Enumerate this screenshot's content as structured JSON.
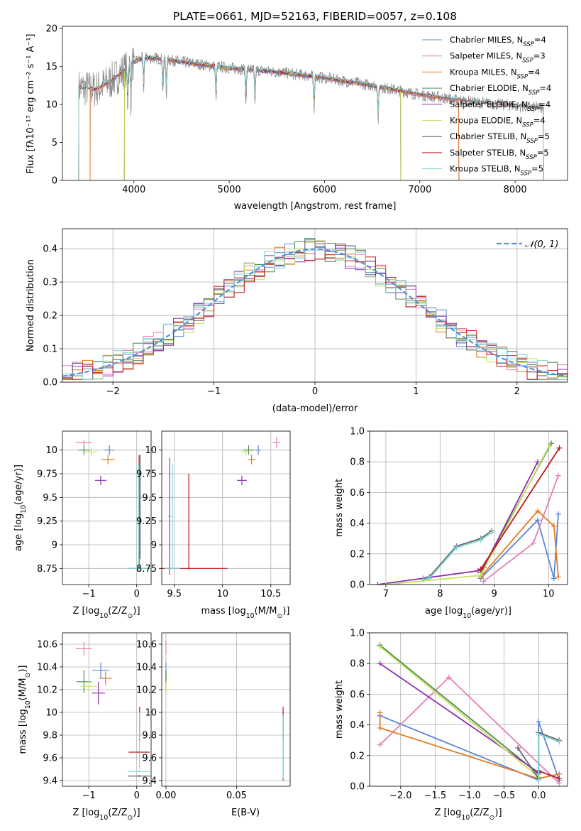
{
  "colors": {
    "Chabrier MILES": "#5b84d6",
    "Salpeter MILES": "#e57fb5",
    "Kroupa MILES": "#e27b20",
    "Chabrier ELODIE": "#4e8a4e",
    "Salpeter ELODIE": "#8f2fb0",
    "Kroupa ELODIE": "#c4e35a",
    "Chabrier STELIB": "#666666",
    "Salpeter STELIB": "#c01818",
    "Kroupa STELIB": "#7fd4d8",
    "gaussian": "#5b8fd6"
  },
  "chart_data": [
    {
      "id": "spectrum",
      "type": "line",
      "title": "PLATE=0661, MJD=52163, FIBERID=0057, z=0.108",
      "xlabel": "wavelength [Angstrom, rest frame]",
      "ylabel": "Flux [f_λ 10^-17 erg cm^-2 s^-1 A^-1]",
      "xlim": [
        3250,
        8550
      ],
      "ylim": [
        0,
        20.3
      ],
      "xticks": [
        4000,
        5000,
        6000,
        7000,
        8000
      ],
      "yticks": [
        0,
        5,
        10,
        15,
        20
      ],
      "grid": false,
      "legend_position": "top-right",
      "legend": [
        {
          "label": "Chabrier MILES, N",
          "sub": "SSP",
          "eq": "=4"
        },
        {
          "label": "Salpeter MILES, N",
          "sub": "SSP",
          "eq": "=3"
        },
        {
          "label": "Kroupa MILES, N",
          "sub": "SSP",
          "eq": "=4"
        },
        {
          "label": "Chabrier ELODIE, N",
          "sub": "SSP",
          "eq": "=4"
        },
        {
          "label": "Salpeter ELODIE, N",
          "sub": "SSP",
          "eq": "=4"
        },
        {
          "label": "Kroupa ELODIE, N",
          "sub": "SSP",
          "eq": "=4"
        },
        {
          "label": "Chabrier STELIB, N",
          "sub": "SSP",
          "eq": "=5"
        },
        {
          "label": "Salpeter STELIB, N",
          "sub": "SSP",
          "eq": "=5"
        },
        {
          "label": "Kroupa STELIB, N",
          "sub": "SSP",
          "eq": "=5"
        }
      ],
      "series_models": [
        "Chabrier MILES",
        "Salpeter MILES",
        "Kroupa MILES",
        "Chabrier ELODIE",
        "Salpeter ELODIE",
        "Kroupa ELODIE",
        "Chabrier STELIB",
        "Salpeter STELIB",
        "Kroupa STELIB"
      ],
      "data_x_range": [
        3420,
        8300
      ],
      "data_continuum": [
        [
          3420,
          12.2
        ],
        [
          3600,
          12.0
        ],
        [
          3750,
          13.0
        ],
        [
          3900,
          14.5
        ],
        [
          4000,
          15.6
        ],
        [
          4100,
          16.2
        ],
        [
          4300,
          16.0
        ],
        [
          4500,
          15.6
        ],
        [
          5000,
          14.8
        ],
        [
          5500,
          14.3
        ],
        [
          6000,
          13.5
        ],
        [
          6500,
          12.5
        ],
        [
          7000,
          11.3
        ],
        [
          7500,
          10.4
        ],
        [
          8000,
          9.8
        ],
        [
          8300,
          9.5
        ]
      ],
      "model_x_ranges": {
        "Chabrier MILES": [
          3540,
          7410
        ],
        "Salpeter MILES": [
          3540,
          7410
        ],
        "Kroupa MILES": [
          3540,
          7410
        ],
        "Chabrier ELODIE": [
          3900,
          6800
        ],
        "Salpeter ELODIE": [
          3900,
          6800
        ],
        "Kroupa ELODIE": [
          3900,
          6800
        ],
        "Chabrier STELIB": [
          3420,
          8300
        ],
        "Salpeter STELIB": [
          3420,
          8300
        ],
        "Kroupa STELIB": [
          3420,
          8300
        ]
      },
      "absorption_lines": [
        3934,
        3969,
        4102,
        4304,
        4341,
        4861,
        5175,
        5270,
        5890,
        6563
      ]
    },
    {
      "id": "residuals",
      "type": "line",
      "xlabel": "(data-model)/error",
      "ylabel": "Normed distribution",
      "xlim": [
        -2.5,
        2.5
      ],
      "ylim": [
        0,
        0.46
      ],
      "xticks": [
        -2,
        -1,
        0,
        1,
        2
      ],
      "yticks": [
        0.0,
        0.1,
        0.2,
        0.3,
        0.4
      ],
      "grid": true,
      "legend_position": "top-right",
      "legend": [
        "𝒩(0, 1)"
      ],
      "bin_width": 0.1,
      "gaussian": {
        "mean": 0,
        "sigma": 1
      }
    },
    {
      "id": "age_vs_Z",
      "type": "scatter",
      "xlabel_parts": {
        "pre": "Z [log",
        "sub": "10",
        "post": "(Z/Z",
        "sun": "⊙",
        "end": ")]"
      },
      "ylabel_parts": {
        "pre": "age  [log",
        "sub": "10",
        "post": "(age/yr)]"
      },
      "xlim": [
        -1.55,
        0.3
      ],
      "ylim": [
        8.58,
        10.2
      ],
      "xticks": [
        -1,
        0
      ],
      "yticks": [
        8.75,
        9.0,
        9.25,
        9.5,
        9.75,
        10.0
      ],
      "grid": true,
      "errorbars": [
        {
          "model": "Chabrier MILES",
          "x": -0.57,
          "xerr": 0.1,
          "y": 10.0,
          "yerr": 0.05
        },
        {
          "model": "Salpeter MILES",
          "x": -1.1,
          "xerr": 0.17,
          "y": 10.08,
          "yerr": 0.03
        },
        {
          "model": "Kroupa MILES",
          "x": -0.6,
          "xerr": 0.14,
          "y": 9.9,
          "yerr": 0.05
        },
        {
          "model": "Chabrier ELODIE",
          "x": -1.1,
          "xerr": 0.12,
          "y": 10.0,
          "yerr": 0.05
        },
        {
          "model": "Salpeter ELODIE",
          "x": -0.75,
          "xerr": 0.12,
          "y": 9.68,
          "yerr": 0.05
        },
        {
          "model": "Kroupa ELODIE",
          "x": -0.95,
          "xerr": 0.12,
          "y": 9.98,
          "yerr": 0.04
        },
        {
          "model": "Chabrier STELIB",
          "x": 0.05,
          "xerr": 0.22,
          "y": 8.75,
          "yerr": 0.02
        },
        {
          "model": "Salpeter STELIB",
          "x": 0.05,
          "xerr": 0.02,
          "y": 9.35,
          "yerr": 0.6
        },
        {
          "model": "Kroupa STELIB",
          "x": 0.05,
          "xerr": 0.22,
          "y": 8.75,
          "yerr": 0.02
        },
        {
          "model": "Chabrier STELIB",
          "x": 0.07,
          "xerr": 0.01,
          "y": 9.4,
          "yerr": 0.55
        },
        {
          "model": "Kroupa STELIB",
          "x": 0.04,
          "xerr": 0.01,
          "y": 9.3,
          "yerr": 0.55
        }
      ]
    },
    {
      "id": "age_vs_mass",
      "type": "scatter",
      "xlabel_parts": {
        "pre": "mass [log",
        "sub": "10",
        "post": "(M/M",
        "sun": "⊙",
        "end": ")]"
      },
      "ylabel": "",
      "xlim": [
        9.37,
        10.7
      ],
      "ylim": [
        8.58,
        10.2
      ],
      "xticks": [
        9.5,
        10.0,
        10.5
      ],
      "yticks": [
        8.75,
        9.0,
        9.25,
        9.5,
        9.75,
        10.0
      ],
      "grid": true,
      "errorbars": [
        {
          "model": "Chabrier MILES",
          "x": 10.37,
          "xerr": 0.03,
          "y": 10.0,
          "yerr": 0.05
        },
        {
          "model": "Salpeter MILES",
          "x": 10.56,
          "xerr": 0.04,
          "y": 10.08,
          "yerr": 0.06
        },
        {
          "model": "Kroupa MILES",
          "x": 10.3,
          "xerr": 0.04,
          "y": 9.9,
          "yerr": 0.05
        },
        {
          "model": "Chabrier ELODIE",
          "x": 10.27,
          "xerr": 0.06,
          "y": 10.0,
          "yerr": 0.05
        },
        {
          "model": "Salpeter ELODIE",
          "x": 10.2,
          "xerr": 0.05,
          "y": 9.68,
          "yerr": 0.05
        },
        {
          "model": "Kroupa ELODIE",
          "x": 10.24,
          "xerr": 0.05,
          "y": 9.98,
          "yerr": 0.04
        },
        {
          "model": "Chabrier STELIB",
          "x": 9.45,
          "xerr": 0.01,
          "y": 9.3,
          "yerr": 0.62
        },
        {
          "model": "Salpeter STELIB",
          "x": 9.65,
          "xerr": 0.4,
          "y": 8.75,
          "yerr": 0.01
        },
        {
          "model": "Salpeter STELIB",
          "x": 9.65,
          "xerr": 0.005,
          "y": 9.25,
          "yerr": 0.5
        },
        {
          "model": "Kroupa STELIB",
          "x": 9.48,
          "xerr": 0.01,
          "y": 9.3,
          "yerr": 0.55
        },
        {
          "model": "Kroupa STELIB",
          "x": 9.48,
          "xerr": 0.08,
          "y": 8.75,
          "yerr": 0.01
        }
      ]
    },
    {
      "id": "weight_vs_age",
      "type": "line",
      "xlabel_parts": {
        "pre": "age  [log",
        "sub": "10",
        "post": "(age/yr)]"
      },
      "ylabel": "mass weight",
      "xlim": [
        6.7,
        10.35
      ],
      "ylim": [
        0,
        1.0
      ],
      "xticks": [
        7,
        8,
        9,
        10
      ],
      "yticks": [
        0.0,
        0.2,
        0.4,
        0.6,
        0.8,
        1.0
      ],
      "grid": true,
      "series": [
        {
          "model": "Chabrier MILES",
          "x": [
            8.75,
            9.8,
            10.1,
            10.18
          ],
          "y": [
            0.04,
            0.42,
            0.04,
            0.46
          ]
        },
        {
          "model": "Salpeter MILES",
          "x": [
            8.8,
            9.72,
            10.18
          ],
          "y": [
            0.02,
            0.27,
            0.71
          ]
        },
        {
          "model": "Kroupa MILES",
          "x": [
            8.75,
            9.8,
            10.1,
            10.18
          ],
          "y": [
            0.05,
            0.48,
            0.38,
            0.05
          ]
        },
        {
          "model": "Chabrier ELODIE",
          "x": [
            8.75,
            10.05
          ],
          "y": [
            0.08,
            0.92
          ]
        },
        {
          "model": "Salpeter ELODIE",
          "x": [
            6.85,
            8.7,
            8.8,
            9.8
          ],
          "y": [
            0.0,
            0.09,
            0.11,
            0.8
          ]
        },
        {
          "model": "Kroupa ELODIE",
          "x": [
            7.0,
            8.75,
            10.02
          ],
          "y": [
            0.0,
            0.06,
            0.91
          ]
        },
        {
          "model": "Chabrier STELIB",
          "x": [
            7.7,
            7.8,
            8.3,
            8.75,
            8.95
          ],
          "y": [
            0.04,
            0.05,
            0.25,
            0.3,
            0.35
          ]
        },
        {
          "model": "Salpeter STELIB",
          "x": [
            8.75,
            10.2
          ],
          "y": [
            0.1,
            0.89
          ]
        },
        {
          "model": "Kroupa STELIB",
          "x": [
            7.7,
            7.8,
            8.3,
            8.75,
            8.95
          ],
          "y": [
            0.03,
            0.04,
            0.24,
            0.29,
            0.34
          ]
        }
      ]
    },
    {
      "id": "mass_vs_Z",
      "type": "scatter",
      "xlabel_parts": {
        "pre": "Z [log",
        "sub": "10",
        "post": "(Z/Z",
        "sun": "⊙",
        "end": ")]"
      },
      "ylabel_parts": {
        "pre": "mass [log",
        "sub": "10",
        "post": "(M/M",
        "sun": "⊙",
        "end": ")]"
      },
      "xlim": [
        -1.55,
        0.3
      ],
      "ylim": [
        9.35,
        10.7
      ],
      "xticks": [
        -1,
        0
      ],
      "yticks": [
        9.4,
        9.6,
        9.8,
        10.0,
        10.2,
        10.4,
        10.6
      ],
      "grid": true,
      "errorbars": [
        {
          "model": "Chabrier MILES",
          "x": -0.75,
          "xerr": 0.18,
          "y": 10.37,
          "yerr": 0.07
        },
        {
          "model": "Salpeter MILES",
          "x": -1.1,
          "xerr": 0.17,
          "y": 10.56,
          "yerr": 0.06
        },
        {
          "model": "Kroupa MILES",
          "x": -0.65,
          "xerr": 0.13,
          "y": 10.3,
          "yerr": 0.06
        },
        {
          "model": "Chabrier ELODIE",
          "x": -1.1,
          "xerr": 0.16,
          "y": 10.27,
          "yerr": 0.1
        },
        {
          "model": "Salpeter ELODIE",
          "x": -0.8,
          "xerr": 0.14,
          "y": 10.17,
          "yerr": 0.1
        },
        {
          "model": "Kroupa ELODIE",
          "x": -1.0,
          "xerr": 0.17,
          "y": 10.23,
          "yerr": 0.05
        },
        {
          "model": "Chabrier STELIB",
          "x": 0.05,
          "xerr": 0.24,
          "y": 9.44,
          "yerr": 0.01
        },
        {
          "model": "Salpeter STELIB",
          "x": 0.05,
          "xerr": 0.22,
          "y": 9.65,
          "yerr": 0.01
        },
        {
          "model": "Salpeter STELIB",
          "x": 0.06,
          "xerr": 0.005,
          "y": 9.9,
          "yerr": 0.15
        },
        {
          "model": "Kroupa STELIB",
          "x": 0.05,
          "xerr": 0.22,
          "y": 9.48,
          "yerr": 0.01
        },
        {
          "model": "Kroupa STELIB",
          "x": 0.06,
          "xerr": 0.005,
          "y": 9.75,
          "yerr": 0.25
        }
      ]
    },
    {
      "id": "mass_vs_ebv",
      "type": "scatter",
      "xlabel": "E(B-V)",
      "ylabel": "",
      "xlim": [
        -0.003,
        0.088
      ],
      "ylim": [
        9.35,
        10.7
      ],
      "xticks": [
        0.0,
        0.05
      ],
      "xticklabels": [
        "0.00",
        "0.05"
      ],
      "yticks": [
        9.4,
        9.6,
        9.8,
        10.0,
        10.2,
        10.4,
        10.6
      ],
      "grid": true,
      "errorbars": [
        {
          "model": "Chabrier MILES",
          "x": 0.0,
          "xerr": 0.0003,
          "y": 10.37,
          "yerr": 0.07
        },
        {
          "model": "Salpeter MILES",
          "x": 0.0,
          "xerr": 0.0003,
          "y": 10.57,
          "yerr": 0.06
        },
        {
          "model": "Kroupa MILES",
          "x": 0.0,
          "xerr": 0.0003,
          "y": 10.3,
          "yerr": 0.06
        },
        {
          "model": "Chabrier ELODIE",
          "x": 0.0,
          "xerr": 0.0003,
          "y": 10.27,
          "yerr": 0.1
        },
        {
          "model": "Kroupa ELODIE",
          "x": 0.0,
          "xerr": 0.0003,
          "y": 10.22,
          "yerr": 0.05
        },
        {
          "model": "Chabrier STELIB",
          "x": 0.083,
          "xerr": 0.0003,
          "y": 9.7,
          "yerr": 0.3
        },
        {
          "model": "Salpeter STELIB",
          "x": 0.083,
          "xerr": 0.0003,
          "y": 9.9,
          "yerr": 0.15
        },
        {
          "model": "Kroupa STELIB",
          "x": 0.083,
          "xerr": 0.0003,
          "y": 9.7,
          "yerr": 0.28
        }
      ]
    },
    {
      "id": "weight_vs_Z",
      "type": "line",
      "xlabel_parts": {
        "pre": "Z [log",
        "sub": "10",
        "post": "(Z/Z",
        "sun": "⊙",
        "end": ")]"
      },
      "ylabel": "mass weight",
      "xlim": [
        -2.45,
        0.42
      ],
      "ylim": [
        0,
        1.0
      ],
      "xticks": [
        -2.0,
        -1.5,
        -1.0,
        -0.5,
        0.0
      ],
      "xticklabels": [
        "−2.0",
        "−1.5",
        "−1.0",
        "−0.5",
        "0.0"
      ],
      "yticks": [
        0.0,
        0.2,
        0.4,
        0.6,
        0.8,
        1.0
      ],
      "grid": true,
      "series": [
        {
          "model": "Chabrier MILES",
          "x": [
            -2.3,
            0.0,
            0.0,
            0.3
          ],
          "y": [
            0.46,
            0.04,
            0.42,
            0.04
          ]
        },
        {
          "model": "Salpeter MILES",
          "x": [
            -2.3,
            -1.3,
            0.3
          ],
          "y": [
            0.27,
            0.71,
            0.02
          ]
        },
        {
          "model": "Kroupa MILES",
          "x": [
            -2.3,
            -2.3,
            0.0,
            0.3
          ],
          "y": [
            0.48,
            0.38,
            0.05,
            0.08
          ]
        },
        {
          "model": "Chabrier ELODIE",
          "x": [
            -2.3,
            0.0
          ],
          "y": [
            0.92,
            0.08
          ]
        },
        {
          "model": "Salpeter ELODIE",
          "x": [
            -2.3,
            0.0
          ],
          "y": [
            0.8,
            0.09
          ]
        },
        {
          "model": "Kroupa ELODIE",
          "x": [
            -2.3,
            0.0
          ],
          "y": [
            0.91,
            0.06
          ]
        },
        {
          "model": "Chabrier STELIB",
          "x": [
            -0.3,
            0.0,
            0.0,
            0.3
          ],
          "y": [
            0.25,
            0.05,
            0.35,
            0.3
          ]
        },
        {
          "model": "Salpeter STELIB",
          "x": [
            0.0,
            0.3
          ],
          "y": [
            0.1,
            0.05
          ]
        },
        {
          "model": "Kroupa STELIB",
          "x": [
            0.0,
            0.0,
            0.3
          ],
          "y": [
            0.04,
            0.34,
            0.29
          ]
        }
      ]
    }
  ]
}
